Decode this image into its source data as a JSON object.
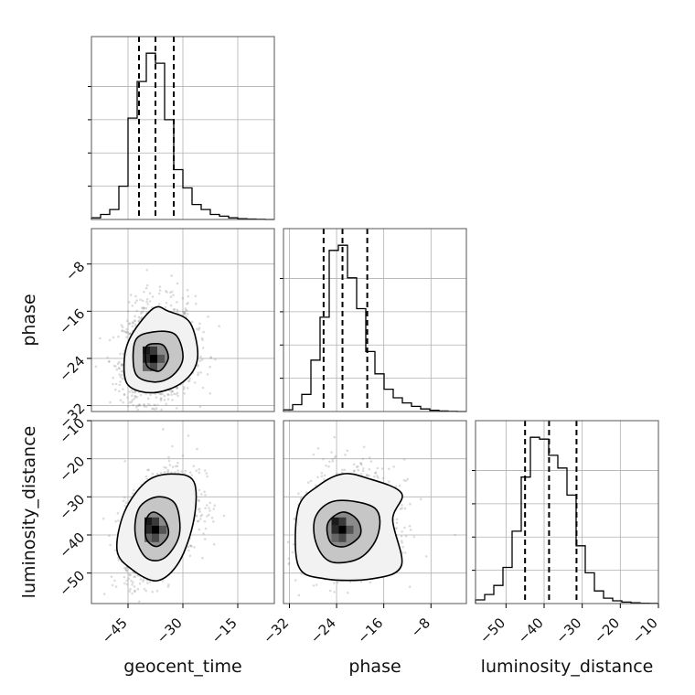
{
  "chart_data": {
    "type": "corner",
    "grid": true,
    "parameters": [
      {
        "name": "geocent_time",
        "xlabel": "geocent_time",
        "range": [
          -55,
          -5
        ],
        "ticks": [
          -45,
          -30,
          -15
        ],
        "tick_labels": [
          "−45",
          "−30",
          "−15"
        ],
        "quantiles": [
          -42,
          -37.5,
          -32.5
        ],
        "histogram": {
          "bin_edges": [
            -55,
            -52.5,
            -50,
            -47.5,
            -45,
            -42.5,
            -40,
            -37.5,
            -35,
            -32.5,
            -30,
            -27.5,
            -25,
            -22.5,
            -20,
            -17.5,
            -15,
            -12.5,
            -10,
            -7.5,
            -5
          ],
          "counts": [
            0.01,
            0.03,
            0.06,
            0.2,
            0.61,
            0.83,
            1.0,
            0.94,
            0.6,
            0.3,
            0.19,
            0.09,
            0.06,
            0.03,
            0.02,
            0.01,
            0.005,
            0.003,
            0.001,
            0.0
          ]
        }
      },
      {
        "name": "phase",
        "xlabel": "phase",
        "ylabel": "phase",
        "range": [
          -33,
          -2
        ],
        "ticks": [
          -32,
          -24,
          -16,
          -8
        ],
        "tick_labels": [
          "−32",
          "−24",
          "−16",
          "−8"
        ],
        "quantiles": [
          -26.2,
          -23,
          -18.8
        ],
        "histogram": {
          "bin_edges": [
            -33,
            -31.45,
            -29.9,
            -28.35,
            -26.8,
            -25.25,
            -23.7,
            -22.15,
            -20.6,
            -19.05,
            -17.5,
            -15.95,
            -14.4,
            -12.85,
            -11.3,
            -9.75,
            -8.2,
            -6.65,
            -5.1,
            -3.55,
            -2
          ],
          "counts": [
            0.01,
            0.04,
            0.1,
            0.3,
            0.55,
            0.94,
            0.97,
            0.78,
            0.6,
            0.35,
            0.22,
            0.13,
            0.08,
            0.05,
            0.03,
            0.015,
            0.007,
            0.003,
            0.001,
            0.0
          ]
        }
      },
      {
        "name": "luminosity_distance",
        "xlabel": "luminosity_distance",
        "ylabel": "luminosity_distance",
        "range": [
          -58,
          -10
        ],
        "ticks": [
          -50,
          -40,
          -30,
          -20,
          -10
        ],
        "tick_labels": [
          "−50",
          "−40",
          "−30",
          "−20",
          "−10"
        ],
        "quantiles": [
          -45,
          -38.7,
          -31.5
        ],
        "histogram": {
          "bin_edges": [
            -58,
            -55.6,
            -53.2,
            -50.8,
            -48.4,
            -46,
            -43.6,
            -41.2,
            -38.8,
            -36.4,
            -34,
            -31.6,
            -29.2,
            -26.8,
            -24.4,
            -22,
            -19.6,
            -17.2,
            -14.8,
            -12.4,
            -10
          ],
          "counts": [
            0.02,
            0.05,
            0.1,
            0.2,
            0.4,
            0.7,
            0.92,
            0.91,
            0.82,
            0.75,
            0.6,
            0.32,
            0.17,
            0.07,
            0.03,
            0.015,
            0.008,
            0.004,
            0.002,
            0.001
          ]
        }
      }
    ],
    "pairs": [
      {
        "x": "geocent_time",
        "y": "phase",
        "center": [
          -38,
          -24
        ],
        "spread": [
          4.2,
          3.6
        ],
        "tilt": 0.12,
        "contours": [
          [
            [
              -35,
              -22
            ],
            [
              -34,
              -24
            ],
            [
              -36,
              -26
            ],
            [
              -38,
              -26
            ],
            [
              -40,
              -25
            ],
            [
              -40,
              -22
            ],
            [
              -37,
              -21.5
            ]
          ],
          [
            [
              -32,
              -20
            ],
            [
              -30,
              -24
            ],
            [
              -33,
              -27
            ],
            [
              -38,
              -28
            ],
            [
              -43,
              -26.5
            ],
            [
              -43,
              -21
            ],
            [
              -38,
              -19.5
            ]
          ],
          [
            [
              -28,
              -18
            ],
            [
              -26,
              -24
            ],
            [
              -30,
              -28
            ],
            [
              -38,
              -29.8
            ],
            [
              -45,
              -28.5
            ],
            [
              -46,
              -24
            ],
            [
              -44,
              -20
            ],
            [
              -38,
              -15.5
            ],
            [
              -34,
              -16
            ]
          ]
        ]
      },
      {
        "x": "geocent_time",
        "y": "luminosity_distance",
        "center": [
          -37.5,
          -38.5
        ],
        "spread": [
          4.2,
          6.0
        ],
        "tilt": 0.45,
        "contours": [
          [
            [
              -35,
              -36
            ],
            [
              -34,
              -40
            ],
            [
              -37,
              -43
            ],
            [
              -40,
              -41
            ],
            [
              -40,
              -36
            ],
            [
              -38,
              -34
            ]
          ],
          [
            [
              -32,
              -32
            ],
            [
              -31,
              -40
            ],
            [
              -35,
              -46
            ],
            [
              -40,
              -46
            ],
            [
              -43,
              -40
            ],
            [
              -42,
              -33
            ],
            [
              -37,
              -30
            ]
          ],
          [
            [
              -27,
              -26
            ],
            [
              -27,
              -36
            ],
            [
              -31,
              -47
            ],
            [
              -37,
              -52
            ],
            [
              -44,
              -49
            ],
            [
              -48,
              -44
            ],
            [
              -46,
              -34
            ],
            [
              -40,
              -26
            ],
            [
              -33,
              -24
            ]
          ]
        ]
      },
      {
        "x": "phase",
        "y": "luminosity_distance",
        "center": [
          -23,
          -38.5
        ],
        "spread": [
          3.3,
          5.8
        ],
        "tilt": 0.15,
        "contours": [
          [
            [
              -20.5,
              -36
            ],
            [
              -20,
              -40
            ],
            [
              -22.5,
              -43
            ],
            [
              -25,
              -42
            ],
            [
              -25.5,
              -37
            ],
            [
              -23,
              -34
            ]
          ],
          [
            [
              -17.5,
              -33
            ],
            [
              -17,
              -40
            ],
            [
              -20,
              -46
            ],
            [
              -25,
              -47
            ],
            [
              -27.5,
              -42
            ],
            [
              -27.5,
              -35
            ],
            [
              -24,
              -31
            ]
          ],
          [
            [
              -19,
              -25
            ],
            [
              -13,
              -29
            ],
            [
              -14.5,
              -36
            ],
            [
              -13,
              -48
            ],
            [
              -18,
              -51.5
            ],
            [
              -26,
              -51.5
            ],
            [
              -30.5,
              -48
            ],
            [
              -30.5,
              -33
            ],
            [
              -27,
              -27
            ],
            [
              -23,
              -24
            ]
          ]
        ]
      }
    ]
  }
}
